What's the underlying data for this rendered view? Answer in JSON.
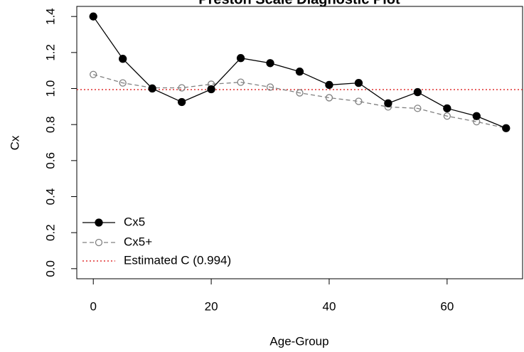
{
  "chart_data": {
    "type": "line",
    "title": "Preston Scale Diagnostic Plot",
    "xlabel": "Age-Group",
    "ylabel": "Cx",
    "x": [
      0,
      5,
      10,
      15,
      20,
      25,
      30,
      35,
      40,
      45,
      50,
      55,
      60,
      65,
      70
    ],
    "series": [
      {
        "name": "Cx5",
        "color": "#000000",
        "marker": "filled",
        "dash": false,
        "values": [
          1.4,
          1.165,
          1.0,
          0.925,
          0.996,
          1.169,
          1.141,
          1.094,
          1.02,
          1.031,
          0.918,
          0.98,
          0.89,
          0.847,
          0.78
        ]
      },
      {
        "name": "Cx5+",
        "color": "#808080",
        "marker": "open",
        "dash": true,
        "values": [
          1.078,
          1.031,
          1.004,
          1.004,
          1.024,
          1.035,
          1.008,
          0.976,
          0.949,
          0.929,
          0.898,
          0.89,
          0.847,
          0.816,
          0.78
        ]
      }
    ],
    "hline": {
      "name": "Estimated C (0.994)",
      "value": 0.994,
      "color": "#e03030"
    },
    "xlim": [
      -2.8,
      72.8
    ],
    "xticks": [
      0,
      20,
      40,
      60
    ],
    "ylim": [
      -0.056,
      1.456
    ],
    "yticks": [
      0.0,
      0.2,
      0.4,
      0.6,
      0.8,
      1.0,
      1.2,
      1.4
    ],
    "legend": "bottom-left"
  }
}
